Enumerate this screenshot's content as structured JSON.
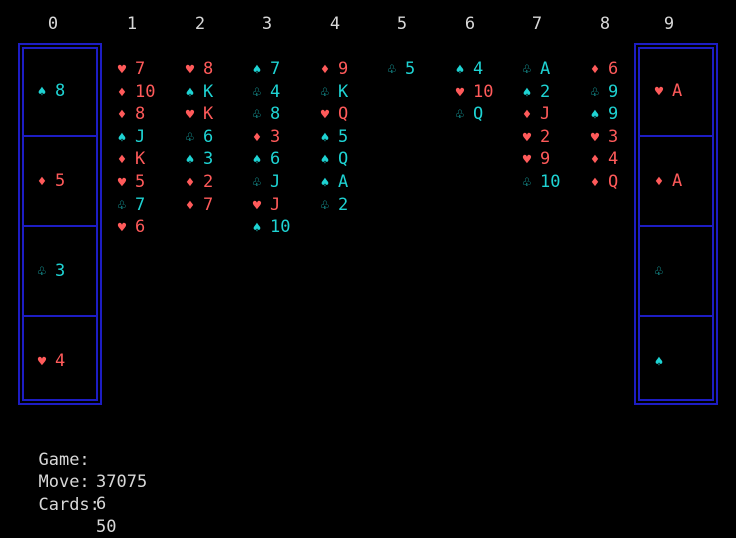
{
  "column_numbers": [
    "0",
    "1",
    "2",
    "3",
    "4",
    "5",
    "6",
    "7",
    "8",
    "9"
  ],
  "suits": {
    "hearts": "♥",
    "diamonds": "♦",
    "clubs": "♧",
    "spades": "♠"
  },
  "colors": {
    "red": "#ff5a5a",
    "cyan": "#1ed3d3",
    "border": "#1d1dc4",
    "text": "#d8d8d8"
  },
  "freecells": [
    {
      "suit": "spades",
      "rank": "8"
    },
    {
      "suit": "diamonds",
      "rank": "5"
    },
    {
      "suit": "clubs",
      "rank": "3"
    },
    {
      "suit": "hearts",
      "rank": "4"
    }
  ],
  "foundations": [
    {
      "suit": "hearts",
      "rank": "A"
    },
    {
      "suit": "diamonds",
      "rank": "A"
    },
    {
      "suit": "clubs",
      "rank": ""
    },
    {
      "suit": "spades",
      "rank": ""
    }
  ],
  "tableau": [
    [
      {
        "suit": "hearts",
        "rank": "7"
      },
      {
        "suit": "diamonds",
        "rank": "10"
      },
      {
        "suit": "diamonds",
        "rank": "8"
      },
      {
        "suit": "spades",
        "rank": "J"
      },
      {
        "suit": "diamonds",
        "rank": "K"
      },
      {
        "suit": "hearts",
        "rank": "5"
      },
      {
        "suit": "clubs",
        "rank": "7"
      },
      {
        "suit": "hearts",
        "rank": "6"
      }
    ],
    [
      {
        "suit": "hearts",
        "rank": "8"
      },
      {
        "suit": "spades",
        "rank": "K"
      },
      {
        "suit": "hearts",
        "rank": "K"
      },
      {
        "suit": "clubs",
        "rank": "6"
      },
      {
        "suit": "spades",
        "rank": "3"
      },
      {
        "suit": "diamonds",
        "rank": "2"
      },
      {
        "suit": "diamonds",
        "rank": "7"
      }
    ],
    [
      {
        "suit": "spades",
        "rank": "7"
      },
      {
        "suit": "clubs",
        "rank": "4"
      },
      {
        "suit": "clubs",
        "rank": "8"
      },
      {
        "suit": "diamonds",
        "rank": "3"
      },
      {
        "suit": "spades",
        "rank": "6"
      },
      {
        "suit": "clubs",
        "rank": "J"
      },
      {
        "suit": "hearts",
        "rank": "J"
      },
      {
        "suit": "spades",
        "rank": "10"
      }
    ],
    [
      {
        "suit": "diamonds",
        "rank": "9"
      },
      {
        "suit": "clubs",
        "rank": "K"
      },
      {
        "suit": "hearts",
        "rank": "Q"
      },
      {
        "suit": "spades",
        "rank": "5"
      },
      {
        "suit": "spades",
        "rank": "Q"
      },
      {
        "suit": "spades",
        "rank": "A"
      },
      {
        "suit": "clubs",
        "rank": "2"
      }
    ],
    [
      {
        "suit": "clubs",
        "rank": "5"
      }
    ],
    [
      {
        "suit": "spades",
        "rank": "4"
      },
      {
        "suit": "hearts",
        "rank": "10"
      },
      {
        "suit": "clubs",
        "rank": "Q"
      }
    ],
    [
      {
        "suit": "clubs",
        "rank": "A"
      },
      {
        "suit": "spades",
        "rank": "2"
      },
      {
        "suit": "diamonds",
        "rank": "J"
      },
      {
        "suit": "hearts",
        "rank": "2"
      },
      {
        "suit": "hearts",
        "rank": "9"
      },
      {
        "suit": "clubs",
        "rank": "10"
      }
    ],
    [
      {
        "suit": "diamonds",
        "rank": "6"
      },
      {
        "suit": "clubs",
        "rank": "9"
      },
      {
        "suit": "spades",
        "rank": "9"
      },
      {
        "suit": "hearts",
        "rank": "3"
      },
      {
        "suit": "diamonds",
        "rank": "4"
      },
      {
        "suit": "diamonds",
        "rank": "Q"
      }
    ]
  ],
  "status": {
    "game_label": "Game:",
    "game_value": "37075",
    "move_label": "Move:",
    "move_value": "6",
    "cards_label": "Cards:",
    "cards_value": "50"
  }
}
